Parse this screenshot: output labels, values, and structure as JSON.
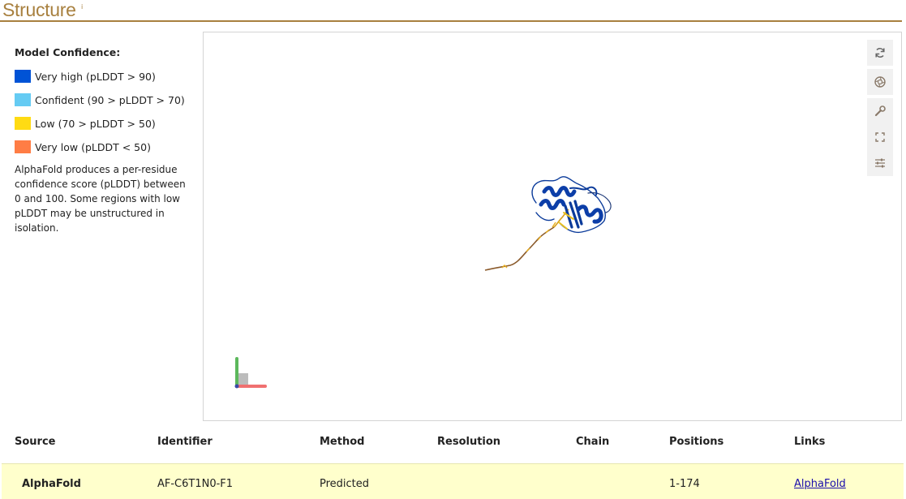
{
  "header": {
    "title": "Structure",
    "info_marker": "i"
  },
  "legend": {
    "heading": "Model Confidence:",
    "items": [
      {
        "label": "Very high (pLDDT > 90)",
        "color": "#0053d6"
      },
      {
        "label": "Confident (90 > pLDDT > 70)",
        "color": "#65cbf3"
      },
      {
        "label": "Low (70 > pLDDT > 50)",
        "color": "#ffdb13"
      },
      {
        "label": "Very low (pLDDT < 50)",
        "color": "#ff7d45"
      }
    ],
    "note": "AlphaFold produces a per-residue confidence score (pLDDT) between 0 and 100. Some regions with low pLDDT may be unstructured in isolation."
  },
  "viewer": {
    "toolbar": [
      {
        "name": "reset-view-icon"
      },
      {
        "name": "camera-icon"
      },
      {
        "name": "wrench-icon"
      },
      {
        "name": "fullscreen-icon"
      },
      {
        "name": "settings-sliders-icon"
      }
    ]
  },
  "table": {
    "headers": [
      "Source",
      "Identifier",
      "Method",
      "Resolution",
      "Chain",
      "Positions",
      "Links"
    ],
    "rows": [
      {
        "source": "AlphaFold",
        "identifier": "AF-C6T1N0-F1",
        "method": "Predicted",
        "resolution": "",
        "chain": "",
        "positions": "1-174",
        "link": "AlphaFold"
      }
    ]
  }
}
